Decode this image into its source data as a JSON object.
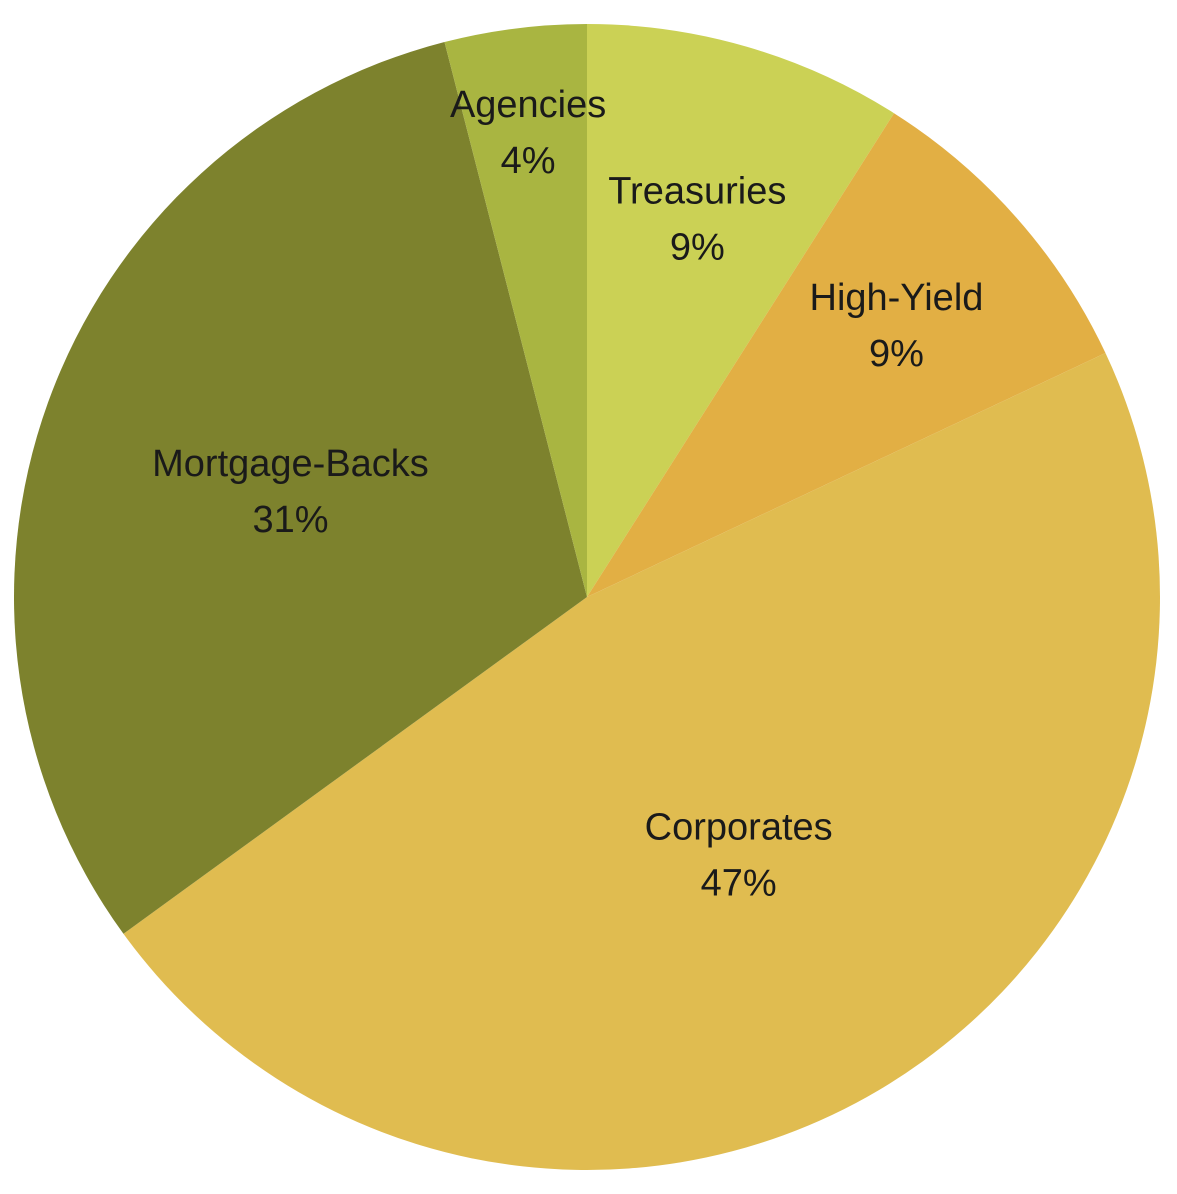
{
  "chart_data": {
    "type": "pie",
    "title": "",
    "start_angle_deg": 0,
    "direction": "clockwise",
    "legend": "none",
    "slices": [
      {
        "label": "Treasuries",
        "value": 9,
        "display": "9%",
        "color": "#CBD155"
      },
      {
        "label": "High-Yield",
        "value": 9,
        "display": "9%",
        "color": "#E2AF44"
      },
      {
        "label": "Corporates",
        "value": 47,
        "display": "47%",
        "color": "#E0BC50"
      },
      {
        "label": "Mortgage-Backs",
        "value": 31,
        "display": "31%",
        "color": "#7D822D"
      },
      {
        "label": "Agencies",
        "value": 4,
        "display": "4%",
        "color": "#A9B541"
      }
    ]
  }
}
